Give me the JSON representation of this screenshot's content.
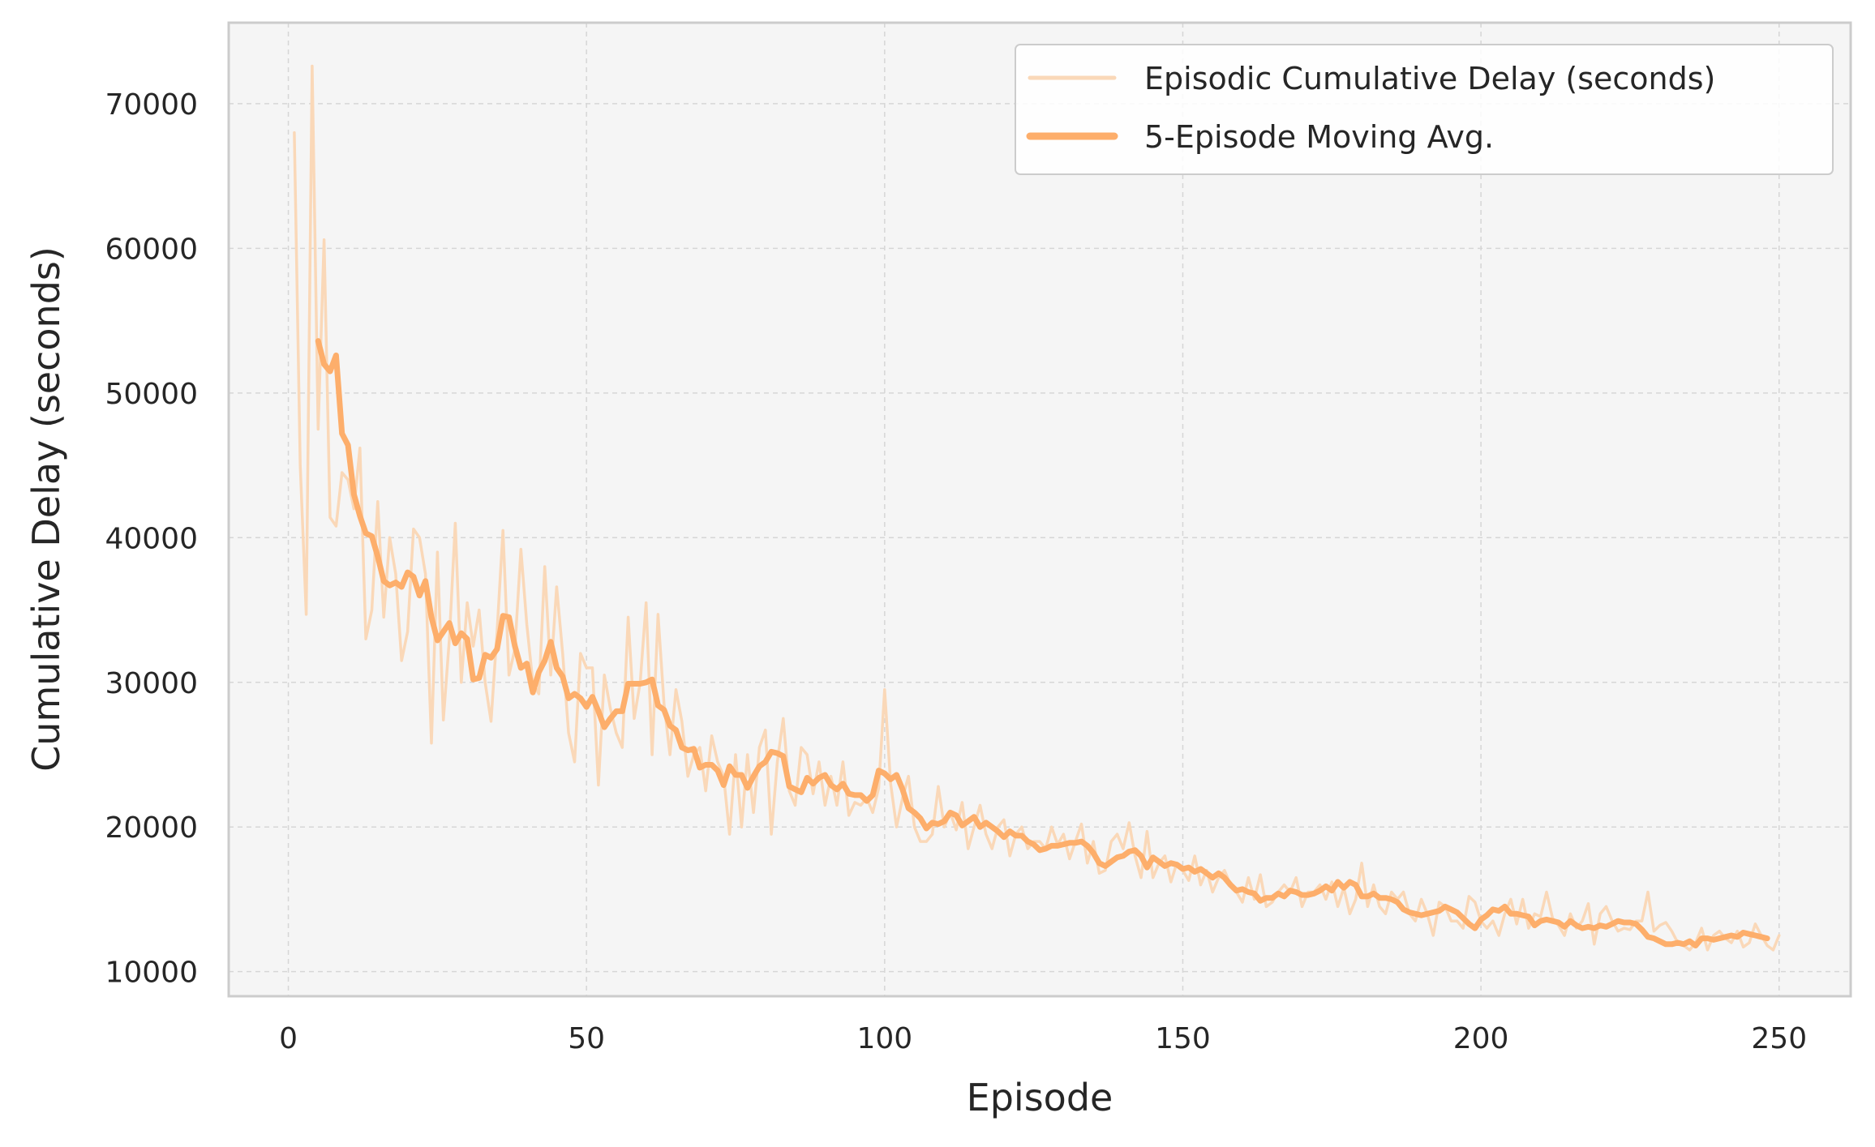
{
  "chart_data": {
    "type": "line",
    "title": "",
    "xlabel": "Episode",
    "ylabel": "Cumulative Delay (seconds)",
    "xlim": [
      -10,
      262
    ],
    "ylim": [
      8300,
      75600
    ],
    "xticks": [
      0,
      50,
      100,
      150,
      200,
      250
    ],
    "yticks": [
      10000,
      20000,
      30000,
      40000,
      50000,
      60000,
      70000
    ],
    "grid": true,
    "legend_position": "top-right",
    "colors": {
      "raw": "#fad8b8",
      "avg": "#fdae6b",
      "plot_bg": "#f5f5f5",
      "grid": "#d6d6d6",
      "frame": "#cccccc"
    },
    "series": [
      {
        "name": "Episodic Cumulative Delay (seconds)",
        "x_start": 1,
        "values": [
          68000,
          45000,
          34700,
          72600,
          47500,
          60600,
          41400,
          40800,
          44500,
          44000,
          42000,
          46200,
          33000,
          35000,
          42500,
          34500,
          40000,
          37500,
          31500,
          33500,
          40600,
          40000,
          37500,
          25800,
          39000,
          27400,
          33000,
          41000,
          30000,
          35500,
          32500,
          35000,
          30000,
          27300,
          33500,
          40500,
          30500,
          32300,
          39200,
          34000,
          30000,
          29200,
          38000,
          30500,
          36600,
          32000,
          26500,
          24500,
          32000,
          31000,
          31000,
          22900,
          30500,
          28200,
          26500,
          25500,
          34500,
          27500,
          30000,
          35500,
          25000,
          34700,
          28500,
          25000,
          29500,
          27300,
          23500,
          25000,
          25500,
          22500,
          26300,
          24500,
          23500,
          19500,
          25000,
          20000,
          25000,
          21000,
          25500,
          26700,
          19500,
          24500,
          27500,
          22500,
          21500,
          25500,
          25000,
          22300,
          24500,
          21500,
          23500,
          21500,
          24500,
          20800,
          21700,
          21500,
          22000,
          21000,
          22700,
          29500,
          23000,
          20000,
          22000,
          23500,
          20000,
          19000,
          19000,
          19500,
          22800,
          20000,
          21000,
          19800,
          21700,
          18500,
          20000,
          21500,
          19500,
          18500,
          20000,
          20500,
          18000,
          19500,
          20000,
          18500,
          19000,
          19000,
          18500,
          20000,
          18800,
          19500,
          17800,
          19000,
          20200,
          17500,
          19000,
          16800,
          17000,
          19000,
          19500,
          18500,
          20300,
          18000,
          16500,
          19700,
          16500,
          17500,
          18000,
          16200,
          17500,
          17000,
          16300,
          18000,
          16000,
          17000,
          15500,
          16500,
          17000,
          16000,
          15500,
          14800,
          16500,
          15000,
          16700,
          14500,
          14800,
          15500,
          16000,
          15500,
          16500,
          14500,
          15500,
          15500,
          16000,
          15000,
          16200,
          14500,
          15800,
          14000,
          15000,
          17500,
          14500,
          16000,
          14500,
          14000,
          15500,
          15000,
          15500,
          14000,
          13500,
          15000,
          14000,
          12500,
          14800,
          14500,
          13500,
          13500,
          13000,
          15200,
          14800,
          13500,
          13000,
          13500,
          12500,
          14000,
          15000,
          13300,
          15000,
          13000,
          14000,
          13800,
          15500,
          13700,
          13200,
          12500,
          14000,
          13000,
          13500,
          14700,
          11900,
          14000,
          14500,
          13500,
          12800,
          13000,
          12900,
          13500,
          13500,
          15500,
          12800,
          13200,
          13400,
          12800,
          12000,
          11800,
          11500,
          12000,
          13000,
          11500,
          12500,
          12800,
          12300,
          12000,
          12800,
          11700,
          12000,
          13300,
          12500,
          11800,
          11500,
          12500
        ]
      },
      {
        "name": "5-Episode Moving Avg.",
        "x_start": 5,
        "values": [
          53600,
          52000,
          51500,
          52600,
          47200,
          46400,
          43000,
          41500,
          40300,
          40100,
          38700,
          37000,
          36700,
          36900,
          36600,
          37600,
          37300,
          36000,
          37000,
          34500,
          32900,
          33500,
          34100,
          32700,
          33400,
          33000,
          30200,
          30300,
          31900,
          31700,
          32300,
          34600,
          34500,
          32500,
          31000,
          31300,
          29300,
          30700,
          31500,
          32800,
          31000,
          30400,
          28900,
          29200,
          28900,
          28300,
          29000,
          28000,
          26900,
          27500,
          28000,
          28000,
          29900,
          29900,
          29900,
          30000,
          30200,
          28400,
          28100,
          27000,
          26700,
          25500,
          25300,
          25400,
          24100,
          24300,
          24300,
          23900,
          22900,
          24200,
          23600,
          23600,
          22700,
          23500,
          24200,
          24500,
          25200,
          25100,
          24900,
          22800,
          22600,
          22400,
          23400,
          23000,
          23400,
          23600,
          22900,
          22600,
          23000,
          22300,
          22200,
          22200,
          21800,
          22200,
          23900,
          23700,
          23300,
          23600,
          22600,
          21300,
          21000,
          20600,
          19900,
          20300,
          20200,
          20400,
          21000,
          20800,
          20100,
          20400,
          20700,
          20000,
          20300,
          20000,
          19700,
          19300,
          19700,
          19400,
          19400,
          19000,
          18800,
          18400,
          18500,
          18700,
          18700,
          18800,
          18900,
          18900,
          19000,
          18700,
          18200,
          17500,
          17300,
          17600,
          17900,
          18000,
          18300,
          18400,
          18000,
          17200,
          17900,
          17600,
          17300,
          17500,
          17400,
          17100,
          17200,
          16900,
          17100,
          16800,
          16500,
          16800,
          16500,
          16000,
          15600,
          15700,
          15500,
          15400,
          14900,
          15100,
          15100,
          15400,
          15200,
          15600,
          15500,
          15300,
          15300,
          15400,
          15600,
          15900,
          15600,
          16200,
          15800,
          16200,
          16000,
          15200,
          15200,
          15400,
          15100,
          15100,
          15000,
          14800,
          14300,
          14100,
          14000,
          13900,
          14000,
          14100,
          14200,
          14500,
          14300,
          14100,
          13700,
          13300,
          13000,
          13600,
          13900,
          14300,
          14200,
          14500,
          14000,
          14000,
          13900,
          13800,
          13200,
          13500,
          13600,
          13500,
          13400,
          13100,
          13500,
          13200,
          13000,
          13100,
          13000,
          13200,
          13100,
          13300,
          13500,
          13400,
          13400,
          13300,
          12900,
          12400,
          12300,
          12100,
          11900,
          11900,
          12000,
          11900,
          12100,
          11800,
          12300,
          12300,
          12200,
          12300,
          12400,
          12500,
          12400,
          12700,
          12600,
          12500,
          12400,
          12300
        ]
      }
    ]
  }
}
